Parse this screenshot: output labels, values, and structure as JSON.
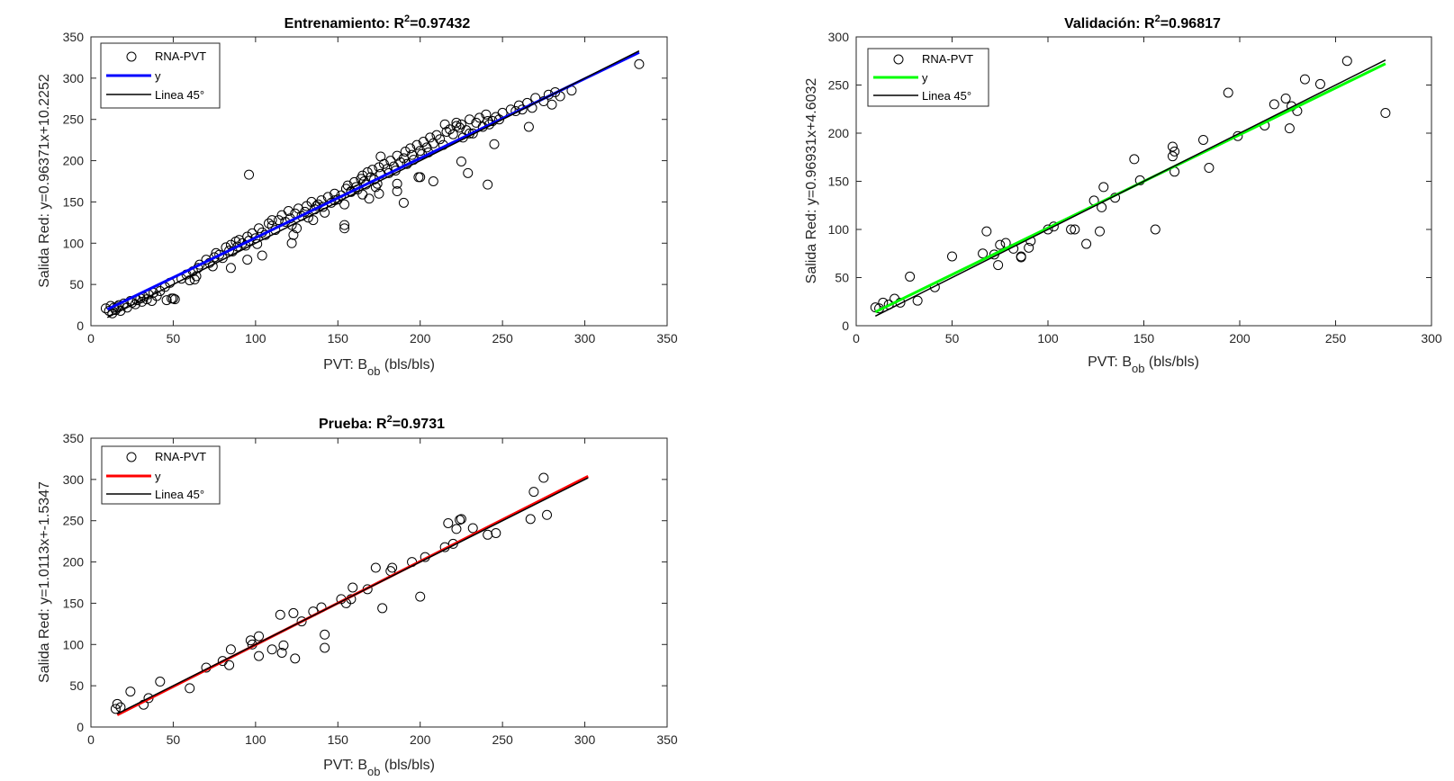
{
  "chart_data": [
    {
      "type": "scatter",
      "title": "Entrenamiento: R",
      "title_sup": "2",
      "title_value": "=0.97432",
      "xlabel": "PVT: B",
      "xlabel_sub": "ob",
      "xlabel_unit": " (bls/bls)",
      "ylabel": "Salida Red: y=0.96371x+10.2252",
      "xlim": [
        0,
        350
      ],
      "ylim": [
        0,
        350
      ],
      "xticks": [
        0,
        50,
        100,
        150,
        200,
        250,
        300,
        350
      ],
      "yticks": [
        0,
        50,
        100,
        150,
        200,
        250,
        300,
        350
      ],
      "legend": [
        "RNA-PVT",
        "y",
        "Linea 45°"
      ],
      "legend_position": "top-left",
      "fit": {
        "slope": 0.96371,
        "intercept": 10.2252,
        "x_range": [
          10,
          333
        ],
        "color": "#0000ff"
      },
      "identity": {
        "x_range": [
          10,
          333
        ],
        "color": "#000000"
      },
      "series": [
        {
          "name": "RNA-PVT",
          "marker": "open-circle",
          "x": [
            9,
            11,
            12,
            13,
            14,
            15,
            16,
            17,
            18,
            20,
            22,
            24,
            25,
            27,
            28,
            30,
            31,
            32,
            34,
            35,
            37,
            38,
            40,
            42,
            45,
            48,
            50,
            55,
            58,
            60,
            62,
            64,
            65,
            66,
            70,
            72,
            74,
            75,
            76,
            78,
            80,
            82,
            84,
            85,
            86,
            88,
            89,
            90,
            92,
            94,
            95,
            96,
            98,
            100,
            101,
            102,
            104,
            106,
            108,
            110,
            112,
            114,
            116,
            118,
            120,
            121,
            122,
            124,
            126,
            128,
            130,
            131,
            132,
            134,
            135,
            136,
            138,
            140,
            141,
            142,
            144,
            146,
            148,
            150,
            152,
            154,
            155,
            156,
            158,
            160,
            161,
            162,
            164,
            165,
            166,
            167,
            168,
            170,
            171,
            172,
            174,
            175,
            176,
            178,
            180,
            181,
            182,
            184,
            185,
            186,
            188,
            190,
            191,
            192,
            194,
            195,
            196,
            198,
            200,
            201,
            202,
            204,
            205,
            206,
            208,
            210,
            212,
            214,
            216,
            218,
            220,
            222,
            224,
            225,
            226,
            228,
            230,
            232,
            234,
            236,
            238,
            240,
            242,
            244,
            246,
            248,
            250,
            255,
            260,
            262,
            265,
            268,
            270,
            275,
            278,
            280,
            282,
            285,
            292,
            333,
            96,
            154,
            176,
            241,
            229,
            200,
            169,
            266,
            208,
            225,
            175,
            95,
            46,
            49,
            104,
            122,
            154,
            190,
            165,
            186,
            110,
            123,
            241,
            63,
            85,
            125,
            137,
            148,
            158,
            173,
            186,
            199,
            215,
            222,
            230,
            245,
            258,
            51
          ],
          "y": [
            21,
            18,
            24,
            15,
            22,
            19,
            23,
            25,
            18,
            27,
            22,
            30,
            28,
            26,
            31,
            33,
            29,
            35,
            32,
            38,
            30,
            40,
            36,
            42,
            47,
            52,
            33,
            57,
            62,
            55,
            66,
            60,
            70,
            74,
            80,
            76,
            72,
            83,
            88,
            86,
            82,
            95,
            91,
            98,
            90,
            102,
            96,
            104,
            100,
            97,
            108,
            103,
            112,
            106,
            99,
            118,
            113,
            110,
            124,
            121,
            116,
            128,
            134,
            126,
            139,
            130,
            122,
            136,
            142,
            133,
            138,
            145,
            131,
            150,
            128,
            141,
            147,
            152,
            144,
            137,
            156,
            149,
            160,
            153,
            158,
            147,
            166,
            170,
            162,
            174,
            168,
            165,
            178,
            182,
            175,
            171,
            186,
            180,
            189,
            177,
            172,
            192,
            184,
            196,
            190,
            185,
            200,
            193,
            188,
            206,
            198,
            203,
            211,
            196,
            215,
            207,
            201,
            219,
            212,
            208,
            223,
            216,
            210,
            228,
            221,
            231,
            226,
            219,
            235,
            238,
            232,
            242,
            240,
            244,
            228,
            237,
            250,
            233,
            246,
            252,
            241,
            256,
            244,
            248,
            253,
            250,
            258,
            262,
            267,
            262,
            270,
            264,
            276,
            272,
            280,
            268,
            283,
            278,
            285,
            317,
            183,
            122,
            205,
            171,
            185,
            180,
            154,
            241,
            175,
            199,
            160,
            80,
            31,
            33,
            85,
            100,
            118,
            149,
            159,
            163,
            128,
            110,
            248,
            56,
            70,
            118,
            145,
            152,
            163,
            168,
            172,
            180,
            244,
            246,
            233,
            220,
            260,
            32
          ]
        }
      ]
    },
    {
      "type": "scatter",
      "title": "Validación: R",
      "title_sup": "2",
      "title_value": "=0.96817",
      "xlabel": "PVT: B",
      "xlabel_sub": "ob",
      "xlabel_unit": " (bls/bls)",
      "ylabel": "Salida Red: y=0.96931x+4.6032",
      "xlim": [
        0,
        300
      ],
      "ylim": [
        0,
        300
      ],
      "xticks": [
        0,
        50,
        100,
        150,
        200,
        250,
        300
      ],
      "yticks": [
        0,
        50,
        100,
        150,
        200,
        250,
        300
      ],
      "legend": [
        "RNA-PVT",
        "y",
        "Linea 45°"
      ],
      "legend_position": "top-left",
      "fit": {
        "slope": 0.96931,
        "intercept": 4.6032,
        "x_range": [
          10,
          276
        ],
        "color": "#00ff00"
      },
      "identity": {
        "x_range": [
          10,
          276
        ],
        "color": "#000000"
      },
      "series": [
        {
          "name": "RNA-PVT",
          "marker": "open-circle",
          "x": [
            10,
            12,
            14,
            17,
            20,
            23,
            28,
            32,
            41,
            50,
            66,
            68,
            72,
            74,
            75,
            78,
            82,
            86,
            86,
            90,
            91,
            100,
            103,
            112,
            114,
            120,
            124,
            127,
            128,
            129,
            135,
            145,
            148,
            156,
            165,
            165,
            166,
            166,
            181,
            184,
            194,
            199,
            213,
            218,
            224,
            226,
            227,
            230,
            234,
            242,
            256,
            276
          ],
          "y": [
            19,
            18,
            24,
            22,
            28,
            24,
            51,
            26,
            40,
            72,
            75,
            98,
            74,
            63,
            84,
            86,
            80,
            71,
            72,
            81,
            88,
            100,
            103,
            100,
            100,
            85,
            130,
            98,
            123,
            144,
            133,
            173,
            151,
            100,
            186,
            176,
            181,
            160,
            193,
            164,
            242,
            197,
            208,
            230,
            236,
            205,
            228,
            223,
            256,
            251,
            275,
            221
          ]
        }
      ]
    },
    {
      "type": "scatter",
      "title": "Prueba: R",
      "title_sup": "2",
      "title_value": "=0.9731",
      "xlabel": "PVT: B",
      "xlabel_sub": "ob",
      "xlabel_unit": " (bls/bls)",
      "ylabel": "Salida Red: y=1.0113x+-1.5347",
      "xlim": [
        0,
        350
      ],
      "ylim": [
        0,
        350
      ],
      "xticks": [
        0,
        50,
        100,
        150,
        200,
        250,
        300,
        350
      ],
      "yticks": [
        0,
        50,
        100,
        150,
        200,
        250,
        300,
        350
      ],
      "legend": [
        "RNA-PVT",
        "y",
        "Linea 45°"
      ],
      "legend_position": "top-left",
      "fit": {
        "slope": 1.0113,
        "intercept": -1.5347,
        "x_range": [
          16,
          302
        ],
        "color": "#ff0000"
      },
      "identity": {
        "x_range": [
          16,
          302
        ],
        "color": "#000000"
      },
      "series": [
        {
          "name": "RNA-PVT",
          "marker": "open-circle",
          "x": [
            15,
            16,
            18,
            24,
            32,
            35,
            42,
            60,
            70,
            80,
            84,
            85,
            97,
            98,
            102,
            102,
            110,
            115,
            116,
            117,
            123,
            124,
            128,
            135,
            140,
            142,
            142,
            152,
            155,
            158,
            159,
            168,
            173,
            177,
            182,
            183,
            195,
            200,
            203,
            215,
            217,
            220,
            222,
            224,
            225,
            232,
            241,
            246,
            267,
            269,
            275,
            277
          ],
          "y": [
            22,
            28,
            24,
            43,
            27,
            35,
            55,
            47,
            72,
            80,
            75,
            94,
            105,
            100,
            110,
            86,
            94,
            136,
            90,
            99,
            138,
            83,
            128,
            140,
            145,
            96,
            112,
            155,
            150,
            155,
            169,
            167,
            193,
            144,
            189,
            193,
            200,
            158,
            206,
            218,
            247,
            222,
            240,
            251,
            252,
            241,
            233,
            235,
            252,
            285,
            302,
            257
          ]
        }
      ]
    }
  ]
}
